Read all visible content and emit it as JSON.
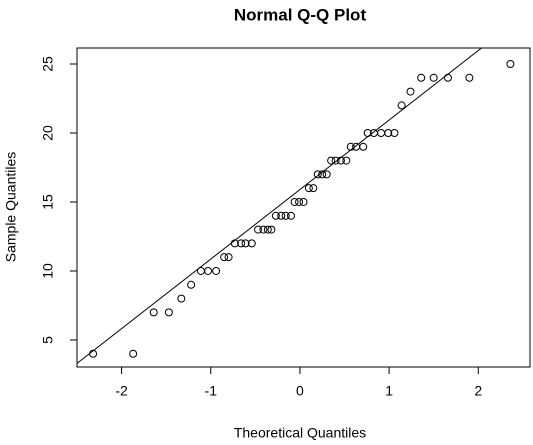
{
  "chart_data": {
    "type": "scatter",
    "title": "Normal Q-Q Plot",
    "x_label": "Theoretical Quantiles",
    "y_label": "Sample Quantiles",
    "x": [
      -2.32,
      -1.87,
      -1.64,
      -1.47,
      -1.33,
      -1.22,
      -1.11,
      -1.03,
      -0.94,
      -0.85,
      -0.8,
      -0.73,
      -0.66,
      -0.61,
      -0.54,
      -0.47,
      -0.41,
      -0.36,
      -0.32,
      -0.27,
      -0.21,
      -0.16,
      -0.1,
      -0.06,
      -0.01,
      0.04,
      0.1,
      0.15,
      0.2,
      0.25,
      0.3,
      0.35,
      0.4,
      0.46,
      0.52,
      0.57,
      0.63,
      0.71,
      0.76,
      0.83,
      0.91,
      0.99,
      1.06,
      1.14,
      1.24,
      1.36,
      1.5,
      1.66,
      1.9,
      2.36
    ],
    "values": [
      4,
      4,
      7,
      7,
      8,
      9,
      10,
      10,
      10,
      11,
      11,
      12,
      12,
      12,
      12,
      13,
      13,
      13,
      13,
      14,
      14,
      14,
      14,
      15,
      15,
      15,
      16,
      16,
      17,
      17,
      17,
      18,
      18,
      18,
      18,
      19,
      19,
      19,
      20,
      20,
      20,
      20,
      20,
      22,
      23,
      24,
      24,
      24,
      24,
      25
    ],
    "color": "#000000",
    "reference_line": {
      "intercept": 15.9,
      "slope": 5.04
    },
    "xlim": [
      -2.5,
      2.58
    ],
    "ylim": [
      3.04,
      26.16
    ],
    "xticks": [
      -2,
      -1,
      0,
      1,
      2
    ],
    "yticks": [
      5,
      10,
      15,
      20,
      25
    ]
  }
}
